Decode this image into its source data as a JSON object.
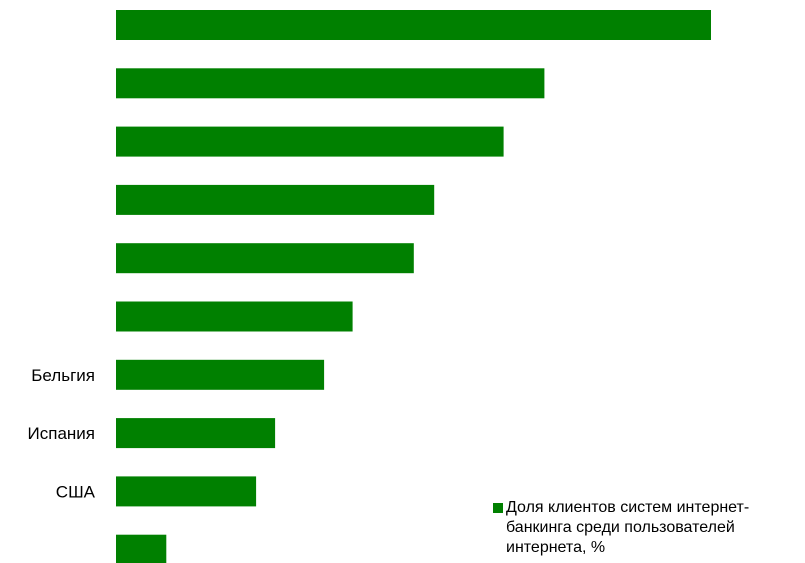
{
  "chart_data": {
    "type": "bar",
    "orientation": "horizontal",
    "categories": [
      "",
      "",
      "",
      "",
      "",
      "",
      "Бельгия",
      "Испания",
      "США",
      ""
    ],
    "series": [
      {
        "name": "Доля клиентов систем интернет-банкинга среди пользователей интернета, %",
        "color": "#008000",
        "values": [
          87.5,
          63,
          57,
          46.8,
          43.8,
          34.8,
          30.6,
          23.4,
          20.6,
          7.4
        ]
      }
    ],
    "xlim": [
      0,
      100
    ],
    "grid": false,
    "legend": "bottom-right",
    "title": "",
    "xlabel": "",
    "ylabel": ""
  }
}
